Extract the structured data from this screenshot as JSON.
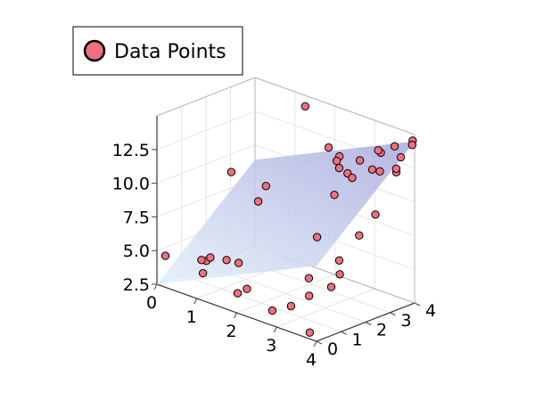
{
  "chart_data": {
    "type": "scatter",
    "subtype": "3d-scatter-with-fitted-plane",
    "title": "",
    "xlabel": "",
    "ylabel": "",
    "zlabel": "",
    "x_ticks": [
      0,
      1,
      2,
      3,
      4
    ],
    "y_ticks": [
      0,
      1,
      2,
      3,
      4
    ],
    "z_ticks": [
      "2.5",
      "5.0",
      "7.5",
      "10.0",
      "12.5"
    ],
    "xlim": [
      0,
      4
    ],
    "ylim": [
      0,
      4
    ],
    "zlim": [
      2.5,
      15
    ],
    "grid": true,
    "legend": {
      "position": "top-left",
      "entries": [
        "Data Points"
      ]
    },
    "colors": {
      "points": "#f06e7e",
      "point_edge": "#000000",
      "plane_low": "#e3f1fb",
      "plane_high": "#a9a9dc"
    },
    "plane": {
      "note": "z = 2.5 + 1.4x + 1.6y",
      "corners": [
        [
          0,
          0,
          2.5
        ],
        [
          4,
          0,
          8.1
        ],
        [
          0,
          4,
          8.9
        ],
        [
          4,
          4,
          14.5
        ]
      ]
    },
    "series": [
      {
        "name": "Data Points",
        "points": [
          [
            0.15,
            0.1,
            4.7
          ],
          [
            0.9,
            0.55,
            4.8
          ],
          [
            1.0,
            0.55,
            5.15
          ],
          [
            0.9,
            0.35,
            5.0
          ],
          [
            1.0,
            0.25,
            4.2
          ],
          [
            1.5,
            0.4,
            5.6
          ],
          [
            1.8,
            0.4,
            5.7
          ],
          [
            2.1,
            0.25,
            4.2
          ],
          [
            1.9,
            0.2,
            3.7
          ],
          [
            2.8,
            0.15,
            3.4
          ],
          [
            3.3,
            0.1,
            4.3
          ],
          [
            3.8,
            0.05,
            2.9
          ],
          [
            3.6,
            0.35,
            5.2
          ],
          [
            3.5,
            0.5,
            6.3
          ],
          [
            4.0,
            0.6,
            6.1
          ],
          [
            4.0,
            0.95,
            6.8
          ],
          [
            3.8,
            1.25,
            7.4
          ],
          [
            3.9,
            1.9,
            8.9
          ],
          [
            3.0,
            1.65,
            8.0
          ],
          [
            1.8,
            1.2,
            9.7
          ],
          [
            1.75,
            1.6,
            10.5
          ],
          [
            0.85,
            1.65,
            10.55
          ],
          [
            2.85,
            2.6,
            10.3
          ],
          [
            2.75,
            3.3,
            11.3
          ],
          [
            3.05,
            3.0,
            11.5
          ],
          [
            3.4,
            3.25,
            12.3
          ],
          [
            3.4,
            3.6,
            13.3
          ],
          [
            3.65,
            3.15,
            12.5
          ],
          [
            3.85,
            3.5,
            12.4
          ],
          [
            4.0,
            3.25,
            13.0
          ],
          [
            2.0,
            3.75,
            12.1
          ],
          [
            2.6,
            3.2,
            11.6
          ],
          [
            2.75,
            3.8,
            11.9
          ],
          [
            3.15,
            3.9,
            13.0
          ],
          [
            2.3,
            3.7,
            11.8
          ],
          [
            1.35,
            3.85,
            14.4
          ],
          [
            3.5,
            4.0,
            13.6
          ],
          [
            3.9,
            3.6,
            13.5
          ],
          [
            3.95,
            4.0,
            14.5
          ],
          [
            2.6,
            3.1,
            12.2
          ],
          [
            4.0,
            2.4,
            10.2
          ],
          [
            4.0,
            3.9,
            14.3
          ]
        ]
      }
    ]
  }
}
